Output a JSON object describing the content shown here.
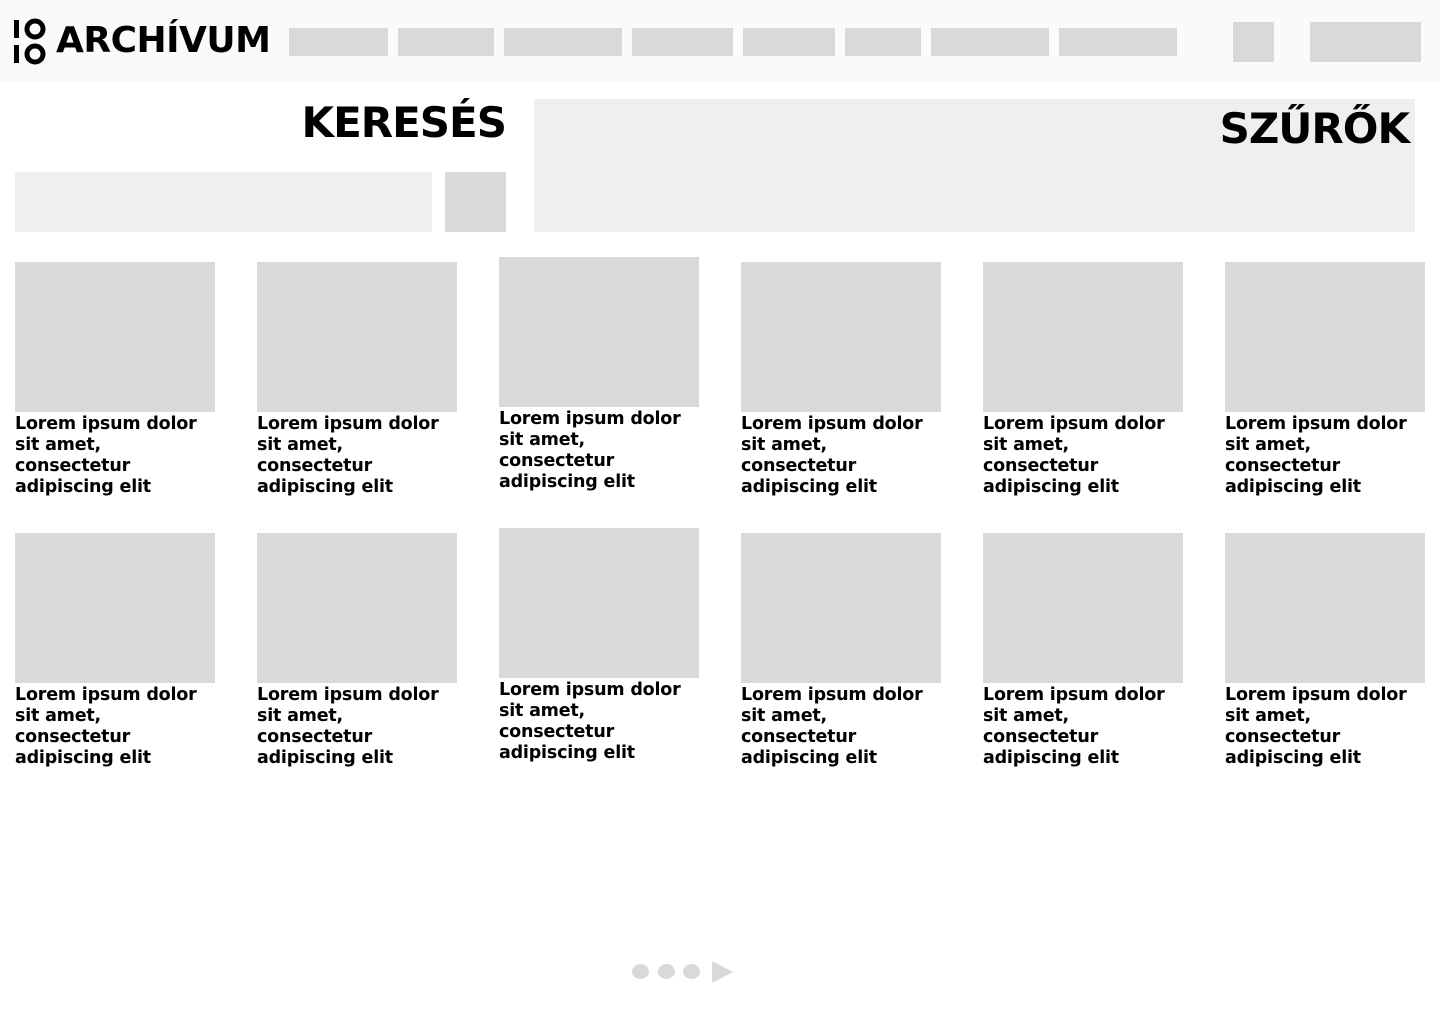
{
  "header": {
    "logo_text": "ARCHÍVUM",
    "logo_mark": "1010",
    "nav_items": [
      "",
      "",
      "",
      "",
      "",
      "",
      "",
      ""
    ]
  },
  "search": {
    "title": "KERESÉS",
    "placeholder": ""
  },
  "filters": {
    "title": "SZŰRŐK"
  },
  "cards": [
    {
      "text": "Lorem ipsum dolor sit amet, consectetur adipiscing elit"
    },
    {
      "text": "Lorem ipsum dolor sit amet, consectetur adipiscing elit"
    },
    {
      "text": "Lorem ipsum dolor sit amet, consectetur adipiscing elit"
    },
    {
      "text": "Lorem ipsum dolor sit amet, consectetur adipiscing elit"
    },
    {
      "text": "Lorem ipsum dolor sit amet, consectetur adipiscing elit"
    },
    {
      "text": "Lorem ipsum dolor sit amet, consectetur adipiscing elit"
    },
    {
      "text": "Lorem ipsum dolor sit amet, consectetur adipiscing elit"
    },
    {
      "text": "Lorem ipsum dolor sit amet, consectetur adipiscing elit"
    },
    {
      "text": "Lorem ipsum dolor sit amet, consectetur adipiscing elit"
    },
    {
      "text": "Lorem ipsum dolor sit amet, consectetur adipiscing elit"
    },
    {
      "text": "Lorem ipsum dolor sit amet, consectetur adipiscing elit"
    },
    {
      "text": "Lorem ipsum dolor sit amet, consectetur adipiscing elit"
    }
  ],
  "pagination": {
    "pages": 3,
    "next_icon": "play-arrow-icon"
  },
  "colors": {
    "placeholder_gray": "#d9d9d9",
    "panel_gray": "#efefef",
    "header_bg": "#fafafa",
    "text": "#000000"
  }
}
